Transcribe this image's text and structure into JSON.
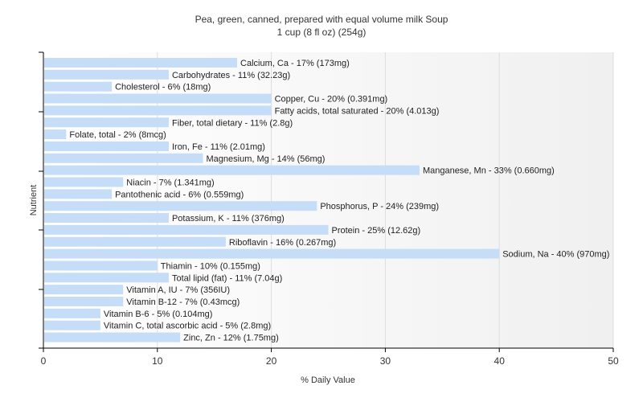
{
  "chart_data": {
    "type": "bar",
    "orientation": "horizontal",
    "title": "Pea, green, canned, prepared with equal volume milk Soup",
    "subtitle": "1 cup (8 fl oz) (254g)",
    "xlabel": "% Daily Value",
    "ylabel": "Nutrient",
    "xlim": [
      0,
      50
    ],
    "xticks": [
      "0",
      "10",
      "20",
      "30",
      "40",
      "50"
    ],
    "grid": "vertical",
    "bar_color": "#c6ddf8",
    "categories": [
      "Calcium, Ca",
      "Carbohydrates",
      "Cholesterol",
      "Copper, Cu",
      "Fatty acids, total saturated",
      "Fiber, total dietary",
      "Folate, total",
      "Iron, Fe",
      "Magnesium, Mg",
      "Manganese, Mn",
      "Niacin",
      "Pantothenic acid",
      "Phosphorus, P",
      "Potassium, K",
      "Protein",
      "Riboflavin",
      "Sodium, Na",
      "Thiamin",
      "Total lipid (fat)",
      "Vitamin A, IU",
      "Vitamin B-12",
      "Vitamin B-6",
      "Vitamin C, total ascorbic acid",
      "Zinc, Zn"
    ],
    "values": [
      17,
      11,
      6,
      20,
      20,
      11,
      2,
      11,
      14,
      33,
      7,
      6,
      24,
      11,
      25,
      16,
      40,
      10,
      11,
      7,
      7,
      5,
      5,
      12
    ],
    "labels": [
      "Calcium, Ca - 17% (173mg)",
      "Carbohydrates - 11% (32.23g)",
      "Cholesterol - 6% (18mg)",
      "Copper, Cu - 20% (0.391mg)",
      "Fatty acids, total saturated - 20% (4.013g)",
      "Fiber, total dietary - 11% (2.8g)",
      "Folate, total - 2% (8mcg)",
      "Iron, Fe - 11% (2.01mg)",
      "Magnesium, Mg - 14% (56mg)",
      "Manganese, Mn - 33% (0.660mg)",
      "Niacin - 7% (1.341mg)",
      "Pantothenic acid - 6% (0.559mg)",
      "Phosphorus, P - 24% (239mg)",
      "Potassium, K - 11% (376mg)",
      "Protein - 25% (12.62g)",
      "Riboflavin - 16% (0.267mg)",
      "Sodium, Na - 40% (970mg)",
      "Thiamin - 10% (0.155mg)",
      "Total lipid (fat) - 11% (7.04g)",
      "Vitamin A, IU - 7% (356IU)",
      "Vitamin B-12 - 7% (0.43mcg)",
      "Vitamin B-6 - 5% (0.104mg)",
      "Vitamin C, total ascorbic acid - 5% (2.8mg)",
      "Zinc, Zn - 12% (1.75mg)"
    ]
  }
}
